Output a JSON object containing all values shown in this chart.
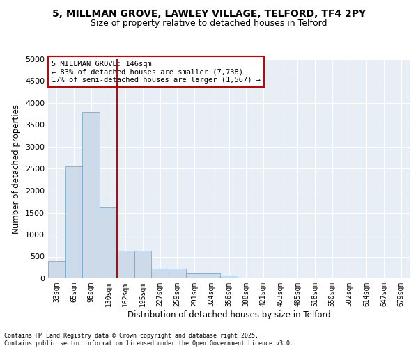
{
  "title_line1": "5, MILLMAN GROVE, LAWLEY VILLAGE, TELFORD, TF4 2PY",
  "title_line2": "Size of property relative to detached houses in Telford",
  "xlabel": "Distribution of detached houses by size in Telford",
  "ylabel": "Number of detached properties",
  "categories": [
    "33sqm",
    "65sqm",
    "98sqm",
    "130sqm",
    "162sqm",
    "195sqm",
    "227sqm",
    "259sqm",
    "291sqm",
    "324sqm",
    "356sqm",
    "388sqm",
    "421sqm",
    "453sqm",
    "485sqm",
    "518sqm",
    "550sqm",
    "582sqm",
    "614sqm",
    "647sqm",
    "679sqm"
  ],
  "values": [
    390,
    2560,
    3790,
    1620,
    630,
    630,
    230,
    230,
    120,
    120,
    70,
    0,
    0,
    0,
    0,
    0,
    0,
    0,
    0,
    0,
    0
  ],
  "bar_color": "#ccdaea",
  "bar_edge_color": "#7aaac8",
  "vline_color": "#cc0000",
  "annotation_text": "5 MILLMAN GROVE: 146sqm\n← 83% of detached houses are smaller (7,738)\n17% of semi-detached houses are larger (1,567) →",
  "annotation_box_color": "#ffffff",
  "annotation_box_edge": "#cc0000",
  "ylim": [
    0,
    5000
  ],
  "yticks": [
    0,
    500,
    1000,
    1500,
    2000,
    2500,
    3000,
    3500,
    4000,
    4500,
    5000
  ],
  "bg_color": "#e8eef5",
  "grid_color": "#ffffff",
  "footer_text": "Contains HM Land Registry data © Crown copyright and database right 2025.\nContains public sector information licensed under the Open Government Licence v3.0.",
  "title_fontsize": 10,
  "subtitle_fontsize": 9,
  "tick_fontsize": 7,
  "label_fontsize": 8.5,
  "annotation_fontsize": 7.5,
  "footer_fontsize": 6
}
